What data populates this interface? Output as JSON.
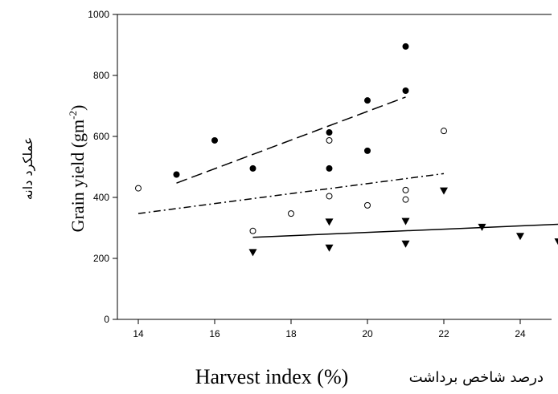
{
  "chart_data": {
    "type": "scatter",
    "title": "",
    "xlabel": "Harvest index (%)",
    "xlabel_fa": "درصد شاخص برداشت",
    "ylabel": "Grain yield (gm-2)",
    "ylabel_parts": {
      "main": "Grain yield (gm",
      "sup": "-2",
      "end": ")"
    },
    "ylabel_fa": "عملکرد دانه",
    "xlim": [
      13.5,
      25
    ],
    "ylim": [
      0,
      1000
    ],
    "xticks": [
      "14",
      "16",
      "18",
      "20",
      "22",
      "24"
    ],
    "yticks": [
      "0",
      "200",
      "400",
      "600",
      "800",
      "1000"
    ],
    "grid": false,
    "series": [
      {
        "marker": "filled-circle",
        "color": "#000000",
        "points": [
          [
            15,
            475
          ],
          [
            16,
            587
          ],
          [
            17,
            495
          ],
          [
            19,
            613
          ],
          [
            19,
            495
          ],
          [
            20,
            718
          ],
          [
            20,
            553
          ],
          [
            21,
            895
          ],
          [
            21,
            750
          ]
        ],
        "trend": {
          "style": "dashed",
          "x": [
            15,
            21
          ],
          "y": [
            447,
            729
          ]
        }
      },
      {
        "marker": "open-circle",
        "color": "#000000",
        "points": [
          [
            14,
            430
          ],
          [
            17,
            290
          ],
          [
            18,
            347
          ],
          [
            19,
            587
          ],
          [
            19,
            404
          ],
          [
            20,
            374
          ],
          [
            21,
            424
          ],
          [
            21,
            393
          ],
          [
            22,
            618
          ]
        ],
        "trend": {
          "style": "dash-dot",
          "x": [
            14,
            22
          ],
          "y": [
            347,
            478
          ]
        }
      },
      {
        "marker": "filled-triangle-down",
        "color": "#000000",
        "points": [
          [
            17,
            220
          ],
          [
            19,
            235
          ],
          [
            19,
            320
          ],
          [
            21,
            248
          ],
          [
            21,
            322
          ],
          [
            22,
            422
          ],
          [
            23,
            303
          ],
          [
            24,
            273
          ],
          [
            25,
            255
          ]
        ],
        "trend": {
          "style": "solid",
          "x": [
            17,
            25
          ],
          "y": [
            269,
            312
          ]
        }
      }
    ]
  }
}
